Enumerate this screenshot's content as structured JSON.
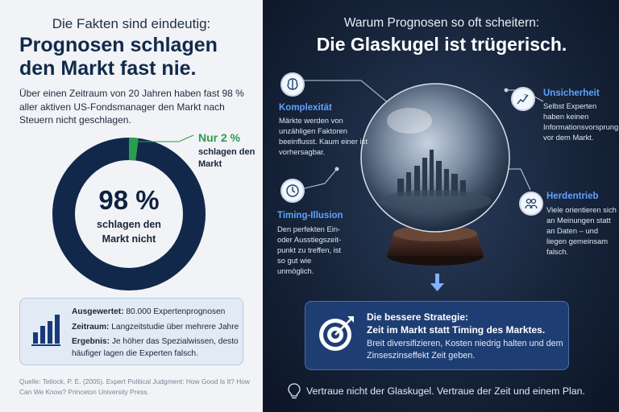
{
  "left": {
    "kicker": "Die Fakten sind eindeutig:",
    "title_line1": "Prognosen schlagen",
    "title_line2": "den Markt fast nie.",
    "intro": "Über einen Zeitraum von 20 Jahren haben fast 98 % aller aktiven US-Fondsmanager den Markt nach Steuern nicht geschlagen.",
    "donut": {
      "fail_percent": 98,
      "success_percent": 2,
      "colors": {
        "fail": "#12284a",
        "success": "#2a9d4e"
      },
      "big_label": "98 %",
      "sub_label_line1": "schlagen den",
      "sub_label_line2": "Markt nicht"
    },
    "callout": {
      "highlight": "Nur 2 %",
      "text_line1": "schlagen den",
      "text_line2": "Markt"
    },
    "info_box": {
      "rows": [
        {
          "label": "Ausgewertet:",
          "value": "80.000 Expertenprognosen"
        },
        {
          "label": "Zeitraum:",
          "value": "Langzeitstudie über mehrere Jahre"
        },
        {
          "label": "Ergebnis:",
          "value": "Je höher das Spezialwissen, desto häufiger lagen die Experten falsch."
        }
      ],
      "icon": "bar-chart-icon"
    },
    "source": "Quelle: Tetlock, P. E. (2005). Expert Political Judgment: How Good Is It? How Can We Know? Princeton University Press."
  },
  "right": {
    "kicker": "Warum Prognosen so oft scheitern:",
    "title": "Die Glaskugel ist trügerisch.",
    "factors": [
      {
        "title": "Komplexität",
        "text": "Märkte werden von unzähligen Faktoren beeinflusst. Kaum einer ist vorhersagbar.",
        "icon": "brain-icon"
      },
      {
        "title": "Unsicherheit",
        "text": "Selbst Experten haben keinen Informationsvorsprung vor dem Markt.",
        "icon": "question-chart-icon"
      },
      {
        "title": "Timing-Illusion",
        "text": "Den perfekten Ein- oder Ausstiegszeit- punkt zu treffen, ist so gut wie unmöglich.",
        "icon": "clock-icon"
      },
      {
        "title": "Herdentrieb",
        "text": "Viele orientieren sich an Meinungen statt an Daten – und liegen gemeinsam falsch.",
        "icon": "people-icon"
      }
    ],
    "strategy": {
      "title_line1": "Die bessere Strategie:",
      "title_line2": "Zeit im Markt statt Timing des Marktes.",
      "text": "Breit diversifizieren, Kosten niedrig halten und dem Zinseszinseffekt Zeit geben.",
      "icon": "target-icon"
    },
    "footer": "Vertraue nicht der Glaskugel. Vertraue der Zeit und einem Plan.",
    "footer_icon": "lightbulb-icon"
  }
}
